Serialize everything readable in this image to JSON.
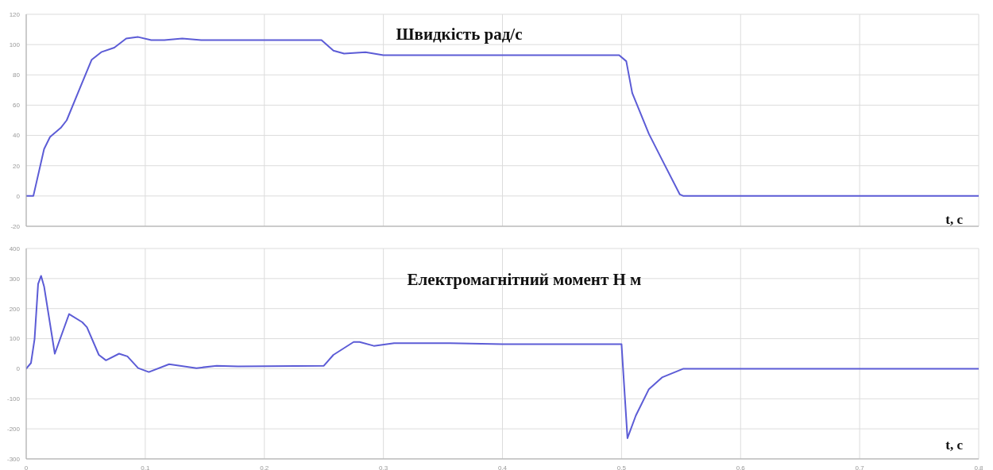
{
  "chart_data": [
    {
      "type": "line",
      "title": "Швидкість рад/с",
      "xlabel": "t, с",
      "x": [
        0,
        0.006,
        0.015,
        0.02,
        0.029,
        0.034,
        0.045,
        0.055,
        0.063,
        0.074,
        0.084,
        0.094,
        0.105,
        0.116,
        0.131,
        0.147,
        0.2,
        0.248,
        0.258,
        0.267,
        0.285,
        0.3,
        0.4,
        0.498,
        0.504,
        0.509,
        0.523,
        0.534,
        0.549,
        0.552,
        0.6,
        0.7,
        0.8
      ],
      "series": [
        {
          "color": "#5c5cd6",
          "values": [
            0,
            0,
            31,
            39,
            45,
            50,
            71,
            90,
            95,
            98,
            104,
            105,
            103,
            103,
            104,
            103,
            103,
            103,
            96,
            94,
            95,
            93,
            93,
            93,
            89,
            68,
            41,
            24,
            1,
            0,
            0,
            0,
            0
          ]
        }
      ],
      "xlim": [
        0,
        0.8
      ],
      "xticks": [
        0,
        0.1,
        0.2,
        0.3,
        0.4,
        0.5,
        0.6,
        0.7,
        0.8
      ],
      "ylim": [
        -20,
        120
      ],
      "yticks": [
        -20,
        0,
        20,
        40,
        60,
        80,
        100,
        120
      ],
      "grid": true,
      "tick_labels": "y"
    },
    {
      "type": "line",
      "title": "Електромагнітний момент Н м",
      "xlabel": "t, с",
      "x": [
        0,
        0.004,
        0.007,
        0.01,
        0.0125,
        0.015,
        0.024,
        0.036,
        0.047,
        0.051,
        0.061,
        0.067,
        0.078,
        0.085,
        0.094,
        0.103,
        0.12,
        0.143,
        0.16,
        0.178,
        0.25,
        0.258,
        0.275,
        0.28,
        0.292,
        0.309,
        0.356,
        0.4,
        0.5,
        0.505,
        0.512,
        0.523,
        0.534,
        0.552,
        0.6,
        0.7,
        0.8
      ],
      "series": [
        {
          "color": "#5c5cd6",
          "values": [
            0,
            19,
            98,
            282,
            309,
            274,
            50,
            182,
            155,
            138,
            46,
            28,
            50,
            41,
            2,
            -11,
            15,
            2,
            10,
            8,
            10,
            46,
            89,
            89,
            76,
            85,
            85,
            82,
            82,
            -231,
            -156,
            -68,
            -29,
            0,
            0,
            0,
            0
          ]
        }
      ],
      "xlim": [
        0,
        0.8
      ],
      "xticks": [
        0,
        0.1,
        0.2,
        0.3,
        0.4,
        0.5,
        0.6,
        0.7,
        0.8
      ],
      "ylim": [
        -300,
        400
      ],
      "yticks": [
        -300,
        -200,
        -100,
        0,
        100,
        200,
        300,
        400
      ],
      "grid": true
    }
  ]
}
